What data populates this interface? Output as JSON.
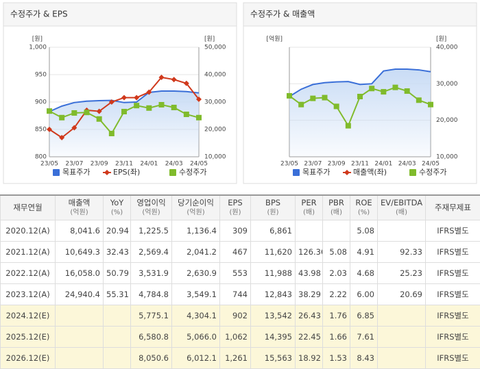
{
  "chart_data": [
    {
      "type": "line",
      "title": "수정주가 & EPS",
      "y_label": "[원]",
      "y2_label": "[원]",
      "categories": [
        "23/05",
        null,
        "23/07",
        null,
        "23/09",
        null,
        "23/11",
        null,
        "24/01",
        null,
        "24/03",
        null,
        "24/05"
      ],
      "ylim": [
        800,
        1000
      ],
      "yticks": [
        800,
        850,
        900,
        950,
        {
          "value": 1000,
          "label": "1,000"
        }
      ],
      "y2lim": [
        10000,
        50000
      ],
      "y2ticks": [
        {
          "value": 10000,
          "label": "10,000"
        },
        {
          "value": 20000,
          "label": "20,000"
        },
        {
          "value": 30000,
          "label": "30,000"
        },
        {
          "value": 40000,
          "label": "40,000"
        },
        {
          "value": 50000,
          "label": "50,000"
        }
      ],
      "grid": true,
      "series": [
        {
          "name": "목표주가",
          "color": "#3a6fd8",
          "axis": "y2",
          "area": true,
          "values": [
            26500,
            28500,
            29800,
            30300,
            30500,
            30600,
            29800,
            30000,
            33500,
            34000,
            34000,
            33800,
            33300
          ]
        },
        {
          "name": "EPS(좌)",
          "color": "#d0391c",
          "axis": "y",
          "marker": "diamond",
          "values": [
            850,
            835,
            853,
            885,
            883,
            900,
            908,
            908,
            918,
            945,
            941,
            934,
            905
          ]
        },
        {
          "name": "수정주가",
          "color": "#80bb2c",
          "axis": "y2",
          "marker": "square",
          "values": [
            26700,
            24300,
            26000,
            26200,
            23800,
            18500,
            26500,
            28700,
            27800,
            29000,
            28000,
            25500,
            24300
          ]
        }
      ]
    },
    {
      "type": "line",
      "title": "수정주가 & 매출액",
      "y_label": "[억원]",
      "y2_label": "[원]",
      "categories": [
        "23/05",
        null,
        "23/07",
        null,
        "23/09",
        null,
        "23/11",
        null,
        "24/01",
        null,
        "24/03",
        null,
        "24/05"
      ],
      "y2lim": [
        10000,
        40000
      ],
      "y2ticks": [
        {
          "value": 10000,
          "label": "10,000"
        },
        {
          "value": 20000,
          "label": "20,000"
        },
        {
          "value": 30000,
          "label": "30,000"
        },
        {
          "value": 40000,
          "label": "40,000"
        }
      ],
      "grid": true,
      "series": [
        {
          "name": "목표주가",
          "color": "#3a6fd8",
          "axis": "y2",
          "area": true,
          "values": [
            26500,
            28500,
            29800,
            30300,
            30500,
            30600,
            29800,
            30000,
            33500,
            34000,
            34000,
            33800,
            33300
          ]
        },
        {
          "name": "매출액(좌)",
          "color": "#d0391c",
          "axis": "y",
          "marker": "diamond",
          "values": [
            null,
            null,
            null,
            null,
            null,
            null,
            null,
            null,
            null,
            null,
            null,
            null,
            null
          ]
        },
        {
          "name": "수정주가",
          "color": "#80bb2c",
          "axis": "y2",
          "marker": "square",
          "values": [
            26700,
            24300,
            26000,
            26200,
            23800,
            18500,
            26500,
            28700,
            27800,
            29000,
            28000,
            25500,
            24300
          ]
        }
      ]
    }
  ],
  "table": {
    "header": [
      {
        "label": "재무연월"
      },
      {
        "label": "매출액",
        "unit": "(억원)"
      },
      {
        "label": "YoY",
        "unit": "(%)"
      },
      {
        "label": "영업이익",
        "unit": "(억원)"
      },
      {
        "label": "당기순이익",
        "unit": "(억원)"
      },
      {
        "label": "EPS",
        "unit": "(원)"
      },
      {
        "label": "BPS",
        "unit": "(원)"
      },
      {
        "label": "PER",
        "unit": "(배)"
      },
      {
        "label": "PBR",
        "unit": "(배)"
      },
      {
        "label": "ROE",
        "unit": "(%)"
      },
      {
        "label": "EV/EBITDA",
        "unit": "(배)"
      },
      {
        "label": "주재무제표"
      }
    ],
    "rows": [
      [
        "2020.12(A)",
        "8,041.6",
        "20.94",
        "1,225.5",
        "1,136.4",
        "309",
        "6,861",
        null,
        null,
        "5.08",
        null,
        "IFRS별도"
      ],
      [
        "2021.12(A)",
        "10,649.3",
        "32.43",
        "2,569.4",
        "2,041.2",
        "467",
        "11,620",
        "126.36",
        "5.08",
        "4.91",
        "92.33",
        "IFRS별도"
      ],
      [
        "2022.12(A)",
        "16,058.0",
        "50.79",
        "3,531.9",
        "2,630.9",
        "553",
        "11,988",
        "43.98",
        "2.03",
        "4.68",
        "25.23",
        "IFRS별도"
      ],
      [
        "2023.12(A)",
        "24,940.4",
        "55.31",
        "4,784.8",
        "3,549.1",
        "744",
        "12,843",
        "38.29",
        "2.22",
        "6.00",
        "20.69",
        "IFRS별도"
      ],
      [
        "2024.12(E)",
        null,
        null,
        "5,775.1",
        "4,304.1",
        "902",
        "13,542",
        "26.43",
        "1.76",
        "6.85",
        null,
        "IFRS별도"
      ],
      [
        "2025.12(E)",
        null,
        null,
        "6,580.8",
        "5,066.0",
        "1,062",
        "14,395",
        "22.45",
        "1.66",
        "7.61",
        null,
        "IFRS별도"
      ],
      [
        "2026.12(E)",
        null,
        null,
        "8,050.6",
        "6,012.1",
        "1,261",
        "15,563",
        "18.92",
        "1.53",
        "8.43",
        null,
        "IFRS별도"
      ]
    ]
  }
}
